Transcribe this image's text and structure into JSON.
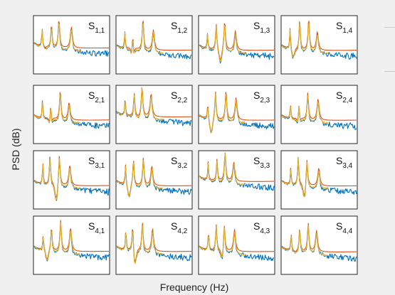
{
  "chart_data": {
    "type": "line",
    "layout": "4x4 grid of subplots",
    "xlabel": "Frequency (Hz)",
    "ylabel": "PSD (dB)",
    "ticks_shown": false,
    "legend": "none",
    "series_colors": [
      "#0072bd",
      "#d95319",
      "#edb120"
    ],
    "panels": [
      {
        "label_base": "S",
        "label_sub": "1,1"
      },
      {
        "label_base": "S",
        "label_sub": "1,2"
      },
      {
        "label_base": "S",
        "label_sub": "1,3"
      },
      {
        "label_base": "S",
        "label_sub": "1,4"
      },
      {
        "label_base": "S",
        "label_sub": "2,1"
      },
      {
        "label_base": "S",
        "label_sub": "2,2"
      },
      {
        "label_base": "S",
        "label_sub": "2,3"
      },
      {
        "label_base": "S",
        "label_sub": "2,4"
      },
      {
        "label_base": "S",
        "label_sub": "3,1"
      },
      {
        "label_base": "S",
        "label_sub": "3,2"
      },
      {
        "label_base": "S",
        "label_sub": "3,3"
      },
      {
        "label_base": "S",
        "label_sub": "3,4"
      },
      {
        "label_base": "S",
        "label_sub": "4,1"
      },
      {
        "label_base": "S",
        "label_sub": "4,2"
      },
      {
        "label_base": "S",
        "label_sub": "4,3"
      },
      {
        "label_base": "S",
        "label_sub": "4,4"
      }
    ]
  }
}
